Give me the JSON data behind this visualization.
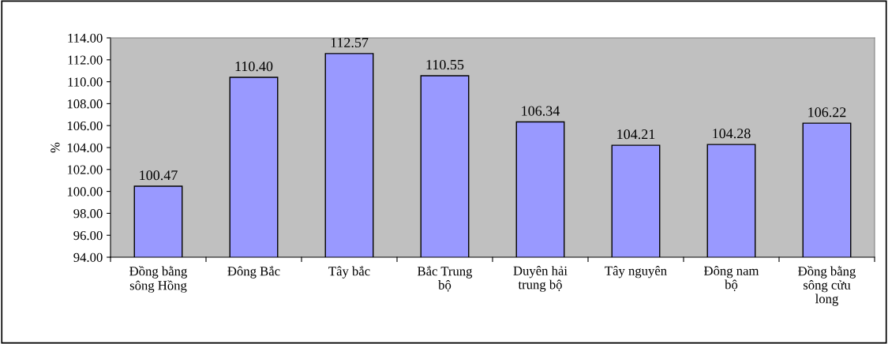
{
  "chart_data": {
    "type": "bar",
    "ylabel": "%",
    "categories": [
      "Đồng bằng\nsông Hồng",
      "Đông Bắc",
      "Tây bắc",
      "Bắc Trung\nbộ",
      "Duyên hải\ntrung bộ",
      "Tây nguyên",
      "Đông nam\nbộ",
      "Đồng bằng\nsông cửu\nlong"
    ],
    "values": [
      100.47,
      110.4,
      112.57,
      110.55,
      106.34,
      104.21,
      104.28,
      106.22
    ],
    "value_labels": [
      "100.47",
      "110.40",
      "112.57",
      "110.55",
      "106.34",
      "104.21",
      "104.28",
      "106.22"
    ],
    "color": "#9999ff",
    "ylim": [
      94,
      114
    ],
    "yticks": [
      {
        "value": 94,
        "label": "94.00"
      },
      {
        "value": 96,
        "label": "96.00"
      },
      {
        "value": 98,
        "label": "98.00"
      },
      {
        "value": 100,
        "label": "100.00"
      },
      {
        "value": 102,
        "label": "102.00"
      },
      {
        "value": 104,
        "label": "104.00"
      },
      {
        "value": 106,
        "label": "106.00"
      },
      {
        "value": 108,
        "label": "108.00"
      },
      {
        "value": 110,
        "label": "110.00"
      },
      {
        "value": 112,
        "label": "112.00"
      },
      {
        "value": 114,
        "label": "114.00"
      }
    ],
    "grid": false,
    "legend": false
  }
}
